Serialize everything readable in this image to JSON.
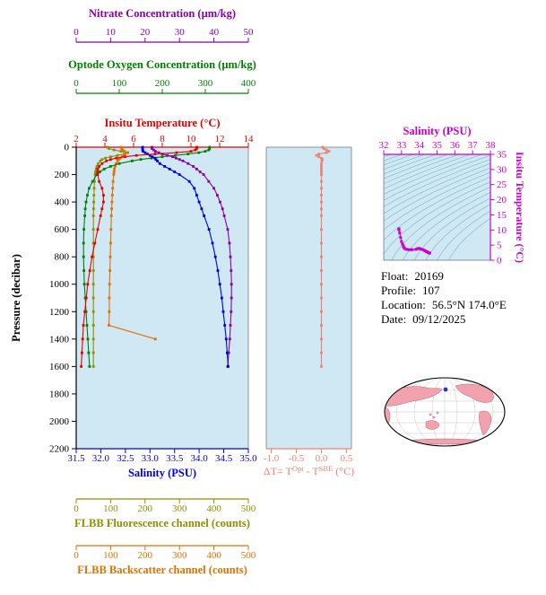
{
  "figure": {
    "bg": "#ffffff",
    "plot_bg": "#cfe8f3"
  },
  "info": {
    "float_label": "Float:",
    "float_value": "20169",
    "profile_label": "Profile:",
    "profile_value": "107",
    "location_label": "Location:",
    "location_value": "56.5°N 174.0°E",
    "date_label": "Date:",
    "date_value": "09/12/2025"
  },
  "map": {
    "ocean_color": "#ffffff",
    "land_color": "#f2a2ae",
    "land_edge_color": "#96505c",
    "marker_color": "#3333cc"
  },
  "chart_data": {
    "type": "line",
    "title": "Argo float profile display",
    "panels": [
      {
        "id": "main-profile",
        "y_axis": {
          "label": "Pressure (decibar)",
          "range": [
            0,
            2200
          ],
          "ticks": [
            0,
            200,
            400,
            600,
            800,
            1000,
            1200,
            1400,
            1600,
            1800,
            2000,
            2200
          ],
          "tick_labels": [
            "0",
            "200",
            "400",
            "600",
            "800",
            "1000",
            "1200",
            "1400",
            "1600",
            "1800",
            "2000",
            "2200"
          ],
          "color": "#000000"
        },
        "x_axes": [
          {
            "id": "nitrate",
            "label": "Nitrate Concentration (µm/kg)",
            "range": [
              0,
              50
            ],
            "ticks": [
              0,
              10,
              20,
              30,
              40,
              50
            ],
            "tick_labels": [
              "0",
              "10",
              "20",
              "30",
              "40",
              "50"
            ],
            "color": "#8800aa"
          },
          {
            "id": "oxygen",
            "label": "Optode Oxygen Concentration (µm/kg)",
            "range": [
              0,
              400
            ],
            "ticks": [
              0,
              100,
              200,
              300,
              400
            ],
            "tick_labels": [
              "0",
              "100",
              "200",
              "300",
              "400"
            ],
            "color": "#008000"
          },
          {
            "id": "temperature",
            "label": "Insitu Temperature (°C)",
            "range": [
              2,
              14
            ],
            "ticks": [
              2,
              4,
              6,
              8,
              10,
              12,
              14
            ],
            "tick_labels": [
              "2",
              "4",
              "6",
              "8",
              "10",
              "12",
              "14"
            ],
            "color": "#e60000"
          },
          {
            "id": "salinity",
            "label": "Salinity (PSU)",
            "range": [
              31.5,
              35.0
            ],
            "ticks": [
              31.5,
              32.0,
              32.5,
              33.0,
              33.5,
              34.0,
              34.5,
              35.0
            ],
            "tick_labels": [
              "31.5",
              "32.0",
              "32.5",
              "33.0",
              "33.5",
              "34.0",
              "34.5",
              "35.0"
            ],
            "color": "#0000dd"
          },
          {
            "id": "fluorescence",
            "label": "FLBB Fluorescence channel (counts)",
            "range": [
              0,
              500
            ],
            "ticks": [
              0,
              100,
              200,
              300,
              400,
              500
            ],
            "tick_labels": [
              "0",
              "100",
              "200",
              "300",
              "400",
              "500"
            ],
            "color": "#8f8f00"
          },
          {
            "id": "backscatter",
            "label": "FLBB Backscatter channel (counts)",
            "range": [
              0,
              500
            ],
            "ticks": [
              0,
              100,
              200,
              300,
              400,
              500
            ],
            "tick_labels": [
              "0",
              "100",
              "200",
              "300",
              "400",
              "500"
            ],
            "color": "#e07000"
          }
        ],
        "series": [
          {
            "name": "fluorescence",
            "axis": "fluorescence",
            "color": "#8f8f00",
            "pressure": [
              0,
              10,
              20,
              30,
              40,
              50,
              60,
              70,
              80,
              90,
              100,
              120,
              140,
              160,
              180,
              200,
              250,
              300,
              350,
              400,
              450,
              500,
              600,
              700,
              800,
              900,
              1000,
              1100,
              1200,
              1300,
              1400,
              1500,
              1600
            ],
            "values": [
              90,
              95,
              110,
              130,
              150,
              140,
              120,
              100,
              85,
              75,
              70,
              64,
              60,
              58,
              56,
              55,
              53,
              52,
              51.5,
              51,
              50.5,
              50,
              50,
              50,
              50,
              50,
              50,
              50,
              50,
              50,
              50,
              50,
              50
            ]
          },
          {
            "name": "backscatter",
            "axis": "backscatter",
            "color": "#e07000",
            "pressure": [
              0,
              10,
              20,
              30,
              40,
              50,
              60,
              70,
              80,
              90,
              100,
              120,
              140,
              160,
              180,
              200,
              250,
              300,
              350,
              400,
              450,
              500,
              600,
              700,
              800,
              900,
              1000,
              1100,
              1200,
              1300,
              1400
            ],
            "values": [
              130,
              132,
              135,
              140,
              145,
              142,
              138,
              133,
              128,
              124,
              120,
              116,
              113,
              111,
              110,
              109,
              107,
              106,
              105,
              104,
              103,
              102,
              101,
              100,
              99,
              98,
              97,
              96,
              96,
              95,
              230
            ]
          },
          {
            "name": "oxygen",
            "axis": "oxygen",
            "color": "#008000",
            "pressure": [
              0,
              10,
              20,
              30,
              40,
              50,
              60,
              70,
              80,
              90,
              100,
              120,
              140,
              160,
              180,
              200,
              250,
              300,
              350,
              400,
              450,
              500,
              600,
              700,
              800,
              900,
              1000,
              1100,
              1200,
              1300,
              1400,
              1500,
              1600
            ],
            "values": [
              310,
              310,
              308,
              300,
              285,
              260,
              230,
              200,
              175,
              150,
              130,
              100,
              80,
              65,
              55,
              48,
              38,
              30,
              26,
              23,
              21,
              20,
              18,
              17,
              17,
              18,
              19,
              21,
              23,
              25,
              27,
              29,
              31
            ]
          },
          {
            "name": "nitrate",
            "axis": "nitrate",
            "color": "#8800aa",
            "pressure": [
              0,
              10,
              20,
              30,
              40,
              50,
              60,
              70,
              80,
              90,
              100,
              120,
              140,
              160,
              180,
              200,
              250,
              300,
              350,
              400,
              450,
              500,
              600,
              700,
              800,
              900,
              1000,
              1100,
              1200,
              1300,
              1400,
              1500,
              1600
            ],
            "values": [
              22,
              22,
              22.5,
              23,
              24,
              25,
              26.5,
              28,
              29,
              30,
              31,
              32.5,
              34,
              35,
              36,
              37,
              38.5,
              40,
              41,
              41.8,
              42.5,
              43,
              44,
              44.5,
              44.8,
              45,
              45.1,
              45.1,
              45,
              44.8,
              44.6,
              44.3,
              44
            ]
          },
          {
            "name": "salinity",
            "axis": "salinity",
            "color": "#0000dd",
            "pressure": [
              0,
              10,
              20,
              30,
              40,
              50,
              60,
              70,
              80,
              90,
              100,
              120,
              140,
              160,
              180,
              200,
              250,
              300,
              350,
              400,
              450,
              500,
              600,
              700,
              800,
              900,
              1000,
              1100,
              1200,
              1300,
              1400,
              1500,
              1600
            ],
            "values": [
              32.85,
              32.85,
              32.85,
              32.86,
              32.9,
              32.95,
              33.0,
              33.05,
              33.1,
              33.12,
              33.15,
              33.2,
              33.3,
              33.4,
              33.5,
              33.6,
              33.8,
              33.9,
              33.95,
              34.0,
              34.05,
              34.1,
              34.2,
              34.27,
              34.33,
              34.38,
              34.42,
              34.46,
              34.49,
              34.52,
              34.55,
              34.57,
              34.59
            ]
          },
          {
            "name": "temperature",
            "axis": "temperature",
            "color": "#e60000",
            "pressure": [
              0,
              10,
              20,
              30,
              40,
              50,
              60,
              70,
              80,
              90,
              100,
              120,
              140,
              160,
              180,
              200,
              250,
              300,
              350,
              400,
              450,
              500,
              600,
              700,
              800,
              900,
              1000,
              1100,
              1200,
              1300,
              1400,
              1500,
              1600
            ],
            "values": [
              10.4,
              10.4,
              10.3,
              10.0,
              9.0,
              7.5,
              6.2,
              5.4,
              4.8,
              4.4,
              4.1,
              3.8,
              3.6,
              3.5,
              3.5,
              3.5,
              3.6,
              3.8,
              3.9,
              3.9,
              3.8,
              3.7,
              3.5,
              3.3,
              3.1,
              2.95,
              2.8,
              2.7,
              2.6,
              2.5,
              2.45,
              2.4,
              2.35
            ]
          }
        ]
      },
      {
        "id": "delta-t",
        "x_axis": {
          "label_parts": [
            {
              "t": "ΔT= T"
            },
            {
              "t": "Opt",
              "sup": true
            },
            {
              "t": " - T"
            },
            {
              "t": "SBE",
              "sup": true
            },
            {
              "t": " (°C)"
            }
          ],
          "range": [
            -1.1,
            0.6
          ],
          "ticks": [
            -1.0,
            -0.5,
            0.0,
            0.5
          ],
          "tick_labels": [
            "-1.0",
            "-0.5",
            "0.0",
            "0.5"
          ],
          "color": "#f08072"
        },
        "series": {
          "name": "delta-t",
          "color": "#f08072",
          "pressure": [
            0,
            10,
            20,
            30,
            40,
            50,
            60,
            70,
            80,
            90,
            100,
            120,
            140,
            160,
            180,
            200,
            250,
            300,
            350,
            400,
            450,
            500,
            600,
            700,
            800,
            900,
            1000,
            1100,
            1200,
            1300,
            1400,
            1500,
            1600
          ],
          "values": [
            0.02,
            0.05,
            0.1,
            0.15,
            0.1,
            -0.05,
            -0.1,
            -0.05,
            0,
            0.02,
            0.01,
            0,
            0,
            0,
            0,
            0,
            0,
            0,
            0,
            0,
            0,
            0,
            0,
            0,
            0,
            0,
            0,
            0,
            0,
            0,
            0,
            0,
            0
          ]
        }
      },
      {
        "id": "ts-diagram",
        "x_axis": {
          "label": "Salinity (PSU)",
          "range": [
            32,
            38
          ],
          "ticks": [
            32,
            33,
            34,
            35,
            36,
            37,
            38
          ],
          "tick_labels": [
            "32",
            "33",
            "34",
            "35",
            "36",
            "37",
            "38"
          ],
          "color": "#cc00cc"
        },
        "y_axis": {
          "label": "Insitu Temperature (°C)",
          "range": [
            0,
            35
          ],
          "ticks": [
            0,
            5,
            10,
            15,
            20,
            25,
            30,
            35
          ],
          "tick_labels": [
            "0",
            "5",
            "10",
            "15",
            "20",
            "25",
            "30",
            "35"
          ],
          "color": "#cc00cc"
        },
        "isopycnals": {
          "sigma_min": 18,
          "sigma_max": 28.5,
          "step": 0.5,
          "color": "#3d95a8"
        },
        "series": {
          "name": "t-s",
          "color": "#cc00cc",
          "salinity": [
            32.85,
            32.85,
            32.85,
            32.86,
            32.9,
            32.95,
            33.0,
            33.05,
            33.1,
            33.12,
            33.15,
            33.2,
            33.3,
            33.4,
            33.5,
            33.6,
            33.8,
            33.9,
            33.95,
            34.0,
            34.05,
            34.1,
            34.2,
            34.27,
            34.33,
            34.38,
            34.42,
            34.46,
            34.49,
            34.52,
            34.55,
            34.57,
            34.59
          ],
          "temperature": [
            10.4,
            10.4,
            10.3,
            10.0,
            9.0,
            7.5,
            6.2,
            5.4,
            4.8,
            4.4,
            4.1,
            3.8,
            3.6,
            3.5,
            3.5,
            3.5,
            3.6,
            3.8,
            3.9,
            3.9,
            3.8,
            3.7,
            3.5,
            3.3,
            3.1,
            2.95,
            2.8,
            2.7,
            2.6,
            2.5,
            2.45,
            2.4,
            2.35
          ]
        }
      }
    ]
  }
}
